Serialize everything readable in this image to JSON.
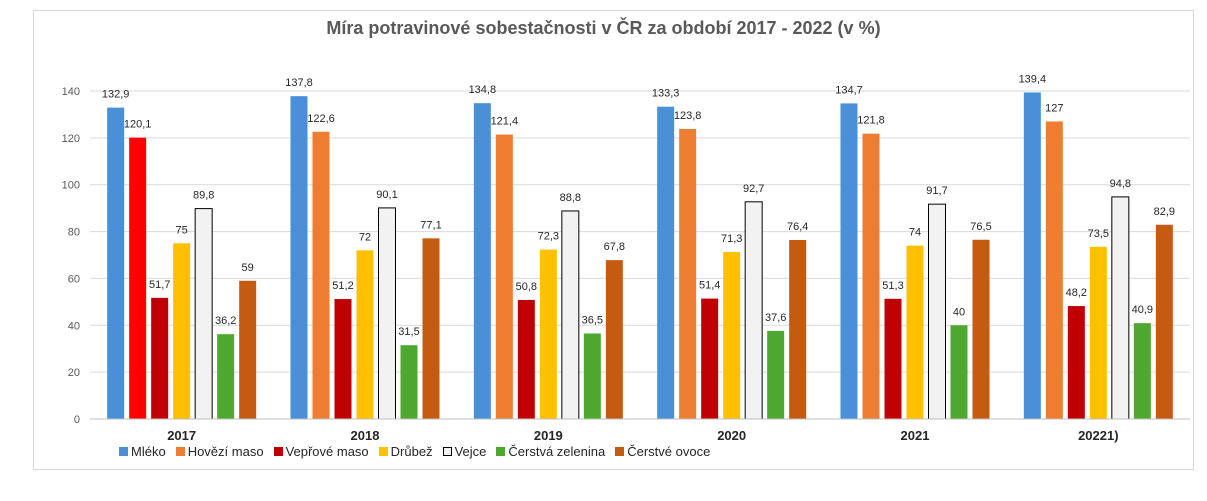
{
  "chart_data": {
    "type": "bar",
    "title": "Míra potravinové sobestačnosti v ČR za období 2017 - 2022 (v %)",
    "categories": [
      "2017",
      "2018",
      "2019",
      "2020",
      "2021",
      "20221)"
    ],
    "ylim": [
      0,
      140
    ],
    "yticks": [
      0,
      20,
      40,
      60,
      80,
      100,
      120,
      140
    ],
    "grid": true,
    "legend_position": "bottom",
    "series": [
      {
        "name": "Mléko",
        "color": "#4a90d9",
        "values": [
          132.9,
          137.8,
          134.8,
          133.3,
          134.7,
          139.4
        ],
        "labels": [
          "132,9",
          "137,8",
          "134,8",
          "133,3",
          "134,7",
          "139,4"
        ]
      },
      {
        "name": "Hovězí maso",
        "color": "#ed7d31",
        "values": [
          120.1,
          122.6,
          121.4,
          123.8,
          121.8,
          127
        ],
        "labels": [
          "120,1",
          "122,6",
          "121,4",
          "123,8",
          "121,8",
          "127"
        ]
      },
      {
        "name": "Vepřové maso",
        "color": "#c00000",
        "values": [
          51.7,
          51.2,
          50.8,
          51.4,
          51.3,
          48.2
        ],
        "labels": [
          "51,7",
          "51,2",
          "50,8",
          "51,4",
          "51,3",
          "48,2"
        ]
      },
      {
        "name": "Drůbež",
        "color": "#ffc000",
        "values": [
          75,
          72,
          72.3,
          71.3,
          74,
          73.5
        ],
        "labels": [
          "75",
          "72",
          "72,3",
          "71,3",
          "74",
          "73,5"
        ]
      },
      {
        "name": "Vejce",
        "color": "#f2f2f2",
        "values": [
          89.8,
          90.1,
          88.8,
          92.7,
          91.7,
          94.8
        ],
        "labels": [
          "89,8",
          "90,1",
          "88,8",
          "92,7",
          "91,7",
          "94,8"
        ]
      },
      {
        "name": "Čerstvá zelenina",
        "color": "#4ea72e",
        "values": [
          36.2,
          31.5,
          36.5,
          37.6,
          40,
          40.9
        ],
        "labels": [
          "36,2",
          "31,5",
          "36,5",
          "37,6",
          "40",
          "40,9"
        ]
      },
      {
        "name": "Čerstvé ovoce",
        "color": "#c55a11",
        "values": [
          59,
          77.1,
          67.8,
          76.4,
          76.5,
          82.9
        ],
        "labels": [
          "59",
          "77,1",
          "67,8",
          "76,4",
          "76,5",
          "82,9"
        ]
      }
    ],
    "highlighted_bar": {
      "series": "Hovězí maso",
      "category": "2017",
      "color": "#ff0000"
    }
  }
}
